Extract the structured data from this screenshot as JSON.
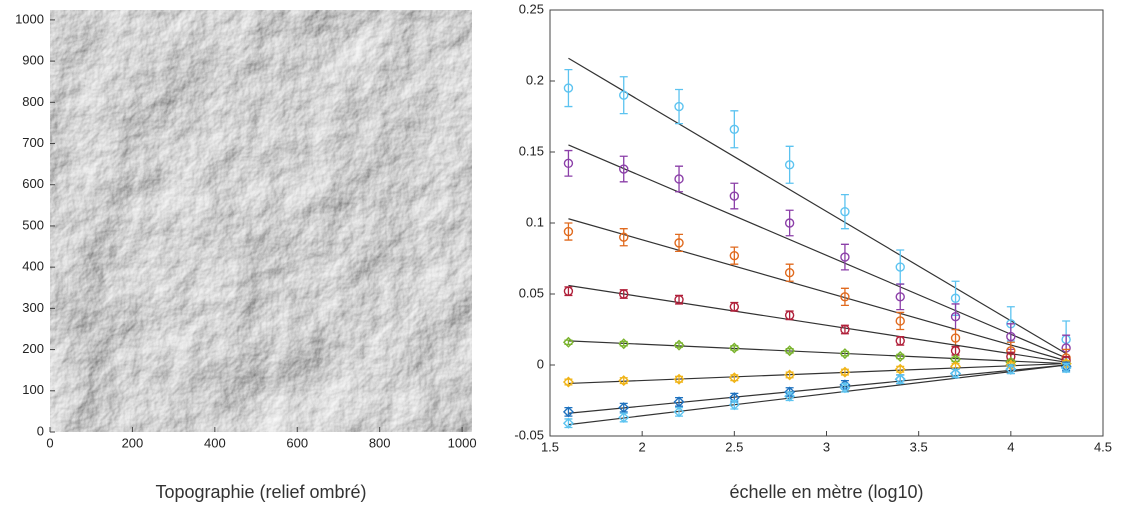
{
  "chart_data": [
    {
      "type": "image",
      "xlabel": "Topographie  (relief ombré)",
      "xlim": [
        0,
        1024
      ],
      "ylim": [
        0,
        1024
      ],
      "xticks": [
        0,
        200,
        400,
        600,
        800,
        1000
      ],
      "yticks": [
        0,
        100,
        200,
        300,
        400,
        500,
        600,
        700,
        800,
        900,
        1000
      ]
    },
    {
      "type": "scatter",
      "xlabel": "échelle en mètre (log10)",
      "xlim": [
        1.5,
        4.5
      ],
      "ylim": [
        -0.05,
        0.25
      ],
      "xticks": [
        1.5,
        2,
        2.5,
        3,
        3.5,
        4,
        4.5
      ],
      "yticks": [
        -0.05,
        0,
        0.05,
        0.1,
        0.15,
        0.2,
        0.25
      ],
      "x": [
        1.6,
        1.9,
        2.2,
        2.5,
        2.8,
        3.1,
        3.4,
        3.7,
        4.0,
        4.3
      ],
      "fit_x": [
        1.6,
        4.3
      ],
      "fit_color": "#333333",
      "series": [
        {
          "color": "#5cc3f0",
          "marker": "circle",
          "values": [
            0.195,
            0.19,
            0.182,
            0.166,
            0.141,
            0.108,
            0.069,
            0.047,
            0.029,
            0.018
          ],
          "errors": [
            0.013,
            0.013,
            0.012,
            0.013,
            0.013,
            0.012,
            0.012,
            0.012,
            0.012,
            0.013
          ],
          "fit": [
            0.216,
            0.008
          ]
        },
        {
          "color": "#8b3fa8",
          "marker": "circle",
          "values": [
            0.142,
            0.138,
            0.131,
            0.119,
            0.1,
            0.076,
            0.048,
            0.034,
            0.02,
            0.012
          ],
          "errors": [
            0.009,
            0.009,
            0.009,
            0.009,
            0.009,
            0.009,
            0.009,
            0.009,
            0.009,
            0.009
          ],
          "fit": [
            0.155,
            0.005
          ]
        },
        {
          "color": "#e06a1e",
          "marker": "circle",
          "values": [
            0.094,
            0.09,
            0.086,
            0.077,
            0.065,
            0.048,
            0.031,
            0.019,
            0.01,
            0.005
          ],
          "errors": [
            0.006,
            0.006,
            0.006,
            0.006,
            0.006,
            0.006,
            0.006,
            0.006,
            0.006,
            0.006
          ],
          "fit": [
            0.103,
            0.003
          ]
        },
        {
          "color": "#b0203a",
          "marker": "circle",
          "values": [
            0.052,
            0.05,
            0.046,
            0.041,
            0.035,
            0.025,
            0.017,
            0.01,
            0.006,
            0.003
          ],
          "errors": [
            0.003,
            0.003,
            0.003,
            0.003,
            0.003,
            0.003,
            0.003,
            0.003,
            0.003,
            0.003
          ],
          "fit": [
            0.056,
            0.002
          ]
        },
        {
          "color": "#7ab32e",
          "marker": "diamond",
          "values": [
            0.016,
            0.015,
            0.014,
            0.012,
            0.01,
            0.008,
            0.006,
            0.004,
            0.002,
            0.001
          ],
          "errors": [
            0.0015,
            0.0015,
            0.0015,
            0.0015,
            0.0015,
            0.0015,
            0.0015,
            0.0015,
            0.0015,
            0.0015
          ],
          "fit": [
            0.017,
            0.001
          ]
        },
        {
          "color": "#f0b419",
          "marker": "diamond",
          "values": [
            -0.012,
            -0.011,
            -0.01,
            -0.009,
            -0.007,
            -0.005,
            -0.003,
            -0.001,
            0,
            0.001
          ],
          "errors": [
            0.002,
            0.002,
            0.002,
            0.002,
            0.002,
            0.002,
            0.002,
            0.002,
            0.002,
            0.002
          ],
          "fit": [
            -0.013,
            0.001
          ]
        },
        {
          "color": "#1f72bf",
          "marker": "diamond",
          "values": [
            -0.033,
            -0.03,
            -0.026,
            -0.023,
            -0.019,
            -0.014,
            -0.01,
            -0.006,
            -0.003,
            -0.001
          ],
          "errors": [
            0.003,
            0.003,
            0.003,
            0.003,
            0.003,
            0.003,
            0.003,
            0.003,
            0.003,
            0.003
          ],
          "fit": [
            -0.034,
            0
          ]
        },
        {
          "color": "#5cc3f0",
          "marker": "diamond",
          "values": [
            -0.041,
            -0.037,
            -0.033,
            -0.028,
            -0.022,
            -0.016,
            -0.01,
            -0.006,
            -0.003,
            -0.002
          ],
          "errors": [
            0.003,
            0.003,
            0.003,
            0.003,
            0.003,
            0.003,
            0.003,
            0.003,
            0.003,
            0.003
          ],
          "fit": [
            -0.042,
            0
          ]
        }
      ]
    }
  ]
}
